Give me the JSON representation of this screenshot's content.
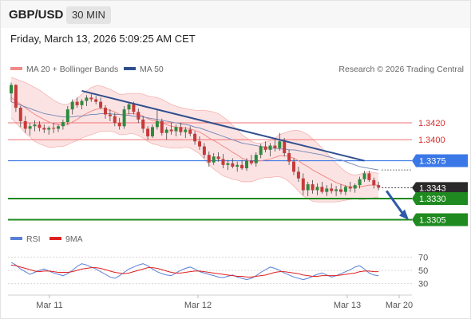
{
  "header": {
    "symbol": "GBP/USD",
    "timeframe": "30 MIN"
  },
  "timestamp": "Friday, March 13, 2026 5:09:25 AM CET",
  "legend": {
    "bb": "MA 20 + Bollinger Bands",
    "ma50": "MA 50",
    "credit": "Research © 2026 Trading Central"
  },
  "rsi_legend": {
    "rsi": "RSI",
    "ma9": "9MA"
  },
  "colors": {
    "up": "#2e8b3d",
    "down": "#c73a3a",
    "bb": "#f08a8a",
    "ma50": "#2f4f8f",
    "support": "#1f8a1f",
    "pivot": "#3b78e7",
    "rsi": "#5a7fd6",
    "rsi_ma": "#e02020"
  },
  "chart_data": {
    "type": "candlestick",
    "price_range": [
      1.3295,
      1.3475
    ],
    "x_labels": [
      "Mar 11",
      "Mar 12",
      "Mar 13",
      "Mar 20"
    ],
    "levels": [
      {
        "value": 1.342,
        "label": "1.3420",
        "type": "resistance"
      },
      {
        "value": 1.34,
        "label": "1.3400",
        "type": "resistance"
      },
      {
        "value": 1.3375,
        "label": "1.3375",
        "type": "pivot"
      },
      {
        "value": 1.3343,
        "label": "1.3343",
        "type": "last"
      },
      {
        "value": 1.333,
        "label": "1.3330",
        "type": "support"
      },
      {
        "value": 1.3305,
        "label": "1.3305",
        "type": "support"
      }
    ],
    "trendline": {
      "from": 1.3458,
      "to": 1.3375
    },
    "projection": {
      "from": 1.3343,
      "to": 1.3303
    },
    "candles": [
      [
        1.3455,
        1.3468,
        1.3445,
        1.3465
      ],
      [
        1.3465,
        1.3466,
        1.3433,
        1.3438
      ],
      [
        1.3438,
        1.344,
        1.3415,
        1.3422
      ],
      [
        1.3422,
        1.3428,
        1.3408,
        1.3413
      ],
      [
        1.3413,
        1.342,
        1.3405,
        1.3416
      ],
      [
        1.3416,
        1.3423,
        1.341,
        1.3418
      ],
      [
        1.3418,
        1.3422,
        1.341,
        1.3414
      ],
      [
        1.3414,
        1.3418,
        1.3408,
        1.3412
      ],
      [
        1.3412,
        1.3416,
        1.3406,
        1.3414
      ],
      [
        1.3414,
        1.342,
        1.3408,
        1.3413
      ],
      [
        1.3413,
        1.3418,
        1.3409,
        1.3416
      ],
      [
        1.3416,
        1.3424,
        1.3412,
        1.3421
      ],
      [
        1.3421,
        1.344,
        1.3418,
        1.3436
      ],
      [
        1.3436,
        1.3448,
        1.343,
        1.3445
      ],
      [
        1.3445,
        1.345,
        1.3438,
        1.3441
      ],
      [
        1.3441,
        1.3448,
        1.3436,
        1.3446
      ],
      [
        1.3446,
        1.3453,
        1.344,
        1.345
      ],
      [
        1.345,
        1.3454,
        1.3445,
        1.3448
      ],
      [
        1.3448,
        1.3452,
        1.3442,
        1.3445
      ],
      [
        1.3445,
        1.345,
        1.3436,
        1.3438
      ],
      [
        1.3438,
        1.3441,
        1.3425,
        1.343
      ],
      [
        1.343,
        1.3436,
        1.3422,
        1.3428
      ],
      [
        1.3428,
        1.3432,
        1.3416,
        1.342
      ],
      [
        1.342,
        1.3426,
        1.3412,
        1.3416
      ],
      [
        1.3416,
        1.344,
        1.3413,
        1.3436
      ],
      [
        1.3436,
        1.3445,
        1.343,
        1.3442
      ],
      [
        1.3442,
        1.3445,
        1.343,
        1.3433
      ],
      [
        1.3433,
        1.3437,
        1.342,
        1.3424
      ],
      [
        1.3424,
        1.3428,
        1.3408,
        1.3413
      ],
      [
        1.3413,
        1.3416,
        1.34,
        1.3404
      ],
      [
        1.3404,
        1.3418,
        1.3402,
        1.3415
      ],
      [
        1.3415,
        1.3435,
        1.3412,
        1.3422
      ],
      [
        1.3422,
        1.3425,
        1.3405,
        1.3408
      ],
      [
        1.3408,
        1.3415,
        1.34,
        1.3412
      ],
      [
        1.3412,
        1.342,
        1.3406,
        1.341
      ],
      [
        1.341,
        1.3418,
        1.3404,
        1.3415
      ],
      [
        1.3415,
        1.342,
        1.3405,
        1.3409
      ],
      [
        1.3409,
        1.3415,
        1.3402,
        1.3412
      ],
      [
        1.3412,
        1.3416,
        1.3404,
        1.3407
      ],
      [
        1.3407,
        1.341,
        1.3394,
        1.3398
      ],
      [
        1.3398,
        1.3404,
        1.3388,
        1.3392
      ],
      [
        1.3392,
        1.3396,
        1.3378,
        1.3382
      ],
      [
        1.3382,
        1.3386,
        1.3368,
        1.3373
      ],
      [
        1.3373,
        1.3384,
        1.337,
        1.338
      ],
      [
        1.338,
        1.3385,
        1.3374,
        1.3377
      ],
      [
        1.3377,
        1.3383,
        1.3366,
        1.337
      ],
      [
        1.337,
        1.3376,
        1.3364,
        1.3372
      ],
      [
        1.3372,
        1.3378,
        1.3366,
        1.3368
      ],
      [
        1.3368,
        1.3374,
        1.3362,
        1.337
      ],
      [
        1.337,
        1.3376,
        1.3364,
        1.3366
      ],
      [
        1.3366,
        1.3378,
        1.3363,
        1.3375
      ],
      [
        1.3375,
        1.3382,
        1.337,
        1.3372
      ],
      [
        1.3372,
        1.3385,
        1.3368,
        1.3382
      ],
      [
        1.3382,
        1.3395,
        1.3378,
        1.3392
      ],
      [
        1.3392,
        1.3398,
        1.3385,
        1.3388
      ],
      [
        1.3388,
        1.3396,
        1.338,
        1.3393
      ],
      [
        1.3393,
        1.34,
        1.3386,
        1.339
      ],
      [
        1.339,
        1.3408,
        1.3387,
        1.3398
      ],
      [
        1.3398,
        1.3402,
        1.338,
        1.3384
      ],
      [
        1.3384,
        1.3388,
        1.337,
        1.3374
      ],
      [
        1.3374,
        1.3378,
        1.3358,
        1.3362
      ],
      [
        1.3362,
        1.3368,
        1.335,
        1.3354
      ],
      [
        1.3354,
        1.336,
        1.3334,
        1.334
      ],
      [
        1.334,
        1.335,
        1.3333,
        1.3347
      ],
      [
        1.3347,
        1.3352,
        1.3336,
        1.334
      ],
      [
        1.334,
        1.3348,
        1.3334,
        1.3344
      ],
      [
        1.3344,
        1.335,
        1.3336,
        1.3338
      ],
      [
        1.3338,
        1.3346,
        1.3333,
        1.3342
      ],
      [
        1.3342,
        1.3348,
        1.3336,
        1.3339
      ],
      [
        1.3339,
        1.3345,
        1.3333,
        1.3341
      ],
      [
        1.3341,
        1.3347,
        1.3335,
        1.3338
      ],
      [
        1.3338,
        1.3346,
        1.3334,
        1.3344
      ],
      [
        1.3344,
        1.335,
        1.3338,
        1.3342
      ],
      [
        1.3342,
        1.3348,
        1.3337,
        1.3346
      ],
      [
        1.3346,
        1.3356,
        1.3342,
        1.3353
      ],
      [
        1.3353,
        1.3363,
        1.335,
        1.336
      ],
      [
        1.336,
        1.3363,
        1.335,
        1.3352
      ],
      [
        1.3352,
        1.3355,
        1.3342,
        1.3346
      ],
      [
        1.3346,
        1.335,
        1.334,
        1.3343
      ]
    ],
    "ma20": [
      1.345,
      1.3446,
      1.3442,
      1.3438,
      1.3434,
      1.343,
      1.3427,
      1.3424,
      1.3421,
      1.3419,
      1.3418,
      1.3417,
      1.3418,
      1.3421,
      1.3424,
      1.3428,
      1.3431,
      1.3434,
      1.3436,
      1.3437,
      1.3436,
      1.3435,
      1.3433,
      1.343,
      1.343,
      1.3431,
      1.3431,
      1.343,
      1.3428,
      1.3425,
      1.3423,
      1.3422,
      1.342,
      1.3418,
      1.3416,
      1.3415,
      1.3414,
      1.3414,
      1.3413,
      1.3411,
      1.3409,
      1.3406,
      1.3402,
      1.3399,
      1.3396,
      1.3392,
      1.3389,
      1.3385,
      1.3382,
      1.3378,
      1.3376,
      1.3374,
      1.3374,
      1.3375,
      1.3376,
      1.3377,
      1.3379,
      1.3381,
      1.3381,
      1.338,
      1.3378,
      1.3375,
      1.3371,
      1.3368,
      1.3364,
      1.3361,
      1.3358,
      1.3355,
      1.3352,
      1.3349,
      1.3347,
      1.3345,
      1.3344,
      1.3344,
      1.3344,
      1.3345,
      1.3346,
      1.3346,
      1.3346
    ],
    "bb_width": [
      0.0024,
      0.0026,
      0.0028,
      0.003,
      0.0031,
      0.0032,
      0.0032,
      0.0031,
      0.003,
      0.0028,
      0.0026,
      0.0025,
      0.0024,
      0.0024,
      0.0025,
      0.0026,
      0.0027,
      0.0028,
      0.0028,
      0.0027,
      0.0026,
      0.0025,
      0.0024,
      0.0024,
      0.0024,
      0.0024,
      0.0024,
      0.0025,
      0.0026,
      0.0027,
      0.0028,
      0.0028,
      0.0028,
      0.0027,
      0.0026,
      0.0025,
      0.0024,
      0.0023,
      0.0023,
      0.0024,
      0.0026,
      0.0029,
      0.0032,
      0.0034,
      0.0035,
      0.0035,
      0.0034,
      0.0032,
      0.003,
      0.0028,
      0.0026,
      0.0024,
      0.0022,
      0.0021,
      0.0021,
      0.0022,
      0.0023,
      0.0025,
      0.0027,
      0.003,
      0.0033,
      0.0036,
      0.0038,
      0.0038,
      0.0037,
      0.0035,
      0.0032,
      0.0029,
      0.0026,
      0.0023,
      0.002,
      0.0017,
      0.0015,
      0.0014,
      0.0015,
      0.0016,
      0.0016,
      0.0015,
      0.0014
    ],
    "ma50": [
      1.3445,
      1.3443,
      1.3441,
      1.3439,
      1.3437,
      1.3435,
      1.3433,
      1.3431,
      1.343,
      1.3429,
      1.3428,
      1.3427,
      1.3427,
      1.3427,
      1.3428,
      1.3428,
      1.3429,
      1.343,
      1.343,
      1.3431,
      1.3431,
      1.3431,
      1.343,
      1.343,
      1.3429,
      1.3429,
      1.3428,
      1.3428,
      1.3427,
      1.3426,
      1.3425,
      1.3424,
      1.3423,
      1.3422,
      1.3421,
      1.342,
      1.3419,
      1.3418,
      1.3417,
      1.3415,
      1.3414,
      1.3412,
      1.341,
      1.3408,
      1.3406,
      1.3404,
      1.3402,
      1.34,
      1.3398,
      1.3396,
      1.3395,
      1.3394,
      1.3393,
      1.3392,
      1.3391,
      1.339,
      1.339,
      1.3389,
      1.3389,
      1.3388,
      1.3388,
      1.3387,
      1.3386,
      1.3385,
      1.3384,
      1.3383,
      1.3382,
      1.338,
      1.3379,
      1.3377,
      1.3376,
      1.3374,
      1.3372,
      1.337,
      1.3368,
      1.3367,
      1.3366,
      1.3365,
      1.3364
    ],
    "rsi": {
      "ticks": [
        "70",
        "50",
        "30"
      ],
      "range": [
        20,
        80
      ],
      "values": [
        62,
        58,
        52,
        48,
        44,
        47,
        50,
        52,
        49,
        46,
        44,
        42,
        45,
        50,
        56,
        60,
        58,
        55,
        52,
        48,
        44,
        40,
        38,
        42,
        47,
        52,
        55,
        58,
        60,
        57,
        52,
        48,
        45,
        43,
        42,
        46,
        50,
        53,
        55,
        52,
        48,
        46,
        44,
        42,
        40,
        39,
        41,
        43,
        40,
        38,
        36,
        38,
        42,
        47,
        51,
        55,
        53,
        50,
        46,
        43,
        40,
        38,
        36,
        38,
        41,
        44,
        46,
        43,
        40,
        42,
        45,
        48,
        51,
        55,
        57,
        52,
        46,
        43,
        42
      ],
      "ma9": [
        58,
        57,
        55,
        53,
        51,
        49,
        48,
        49,
        49,
        48,
        47,
        47,
        47,
        48,
        50,
        52,
        53,
        54,
        54,
        53,
        51,
        49,
        47,
        46,
        45,
        46,
        48,
        50,
        52,
        54,
        54,
        53,
        51,
        49,
        47,
        46,
        46,
        47,
        48,
        49,
        49,
        48,
        47,
        46,
        45,
        44,
        43,
        42,
        41,
        41,
        40,
        40,
        41,
        42,
        43,
        45,
        47,
        48,
        48,
        47,
        46,
        45,
        43,
        42,
        41,
        41,
        42,
        42,
        42,
        42,
        43,
        44,
        45,
        46,
        48,
        49,
        49,
        48,
        48
      ]
    }
  }
}
